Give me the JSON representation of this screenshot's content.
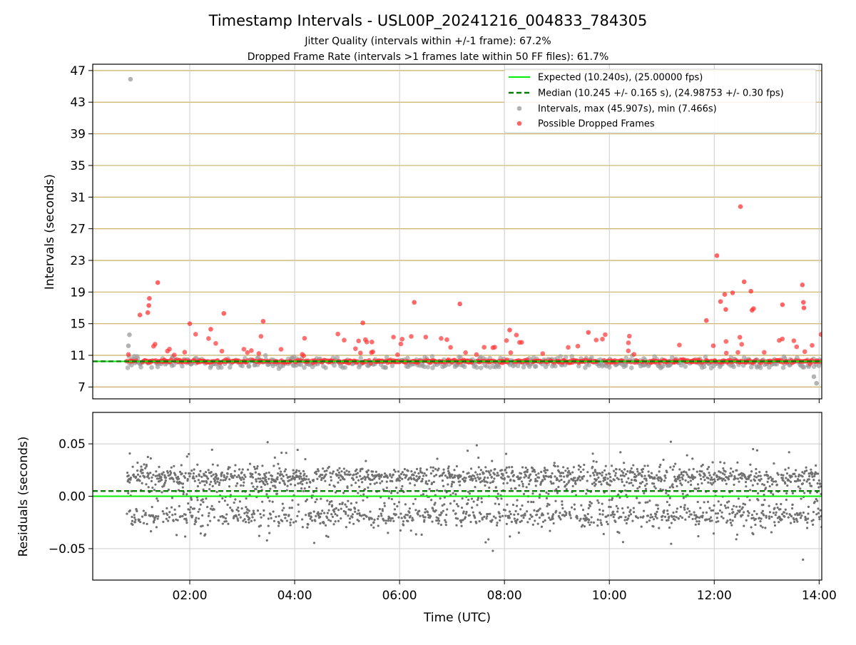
{
  "title": "Timestamp Intervals - USL00P_20241216_004833_784305",
  "subtitle_1": "Jitter Quality (intervals within +/-1 frame): 67.2%",
  "subtitle_2": "Dropped Frame Rate (intervals >1 frames late within 50 FF files): 61.7%",
  "colors": {
    "expected": "#00ee00",
    "median": "#008000",
    "intervals": "#999999",
    "dropped": "#ff3333",
    "residuals": "#707070",
    "hgrid_top": "#c8b060",
    "grid": "#cccccc"
  },
  "chart_data": [
    {
      "type": "scatter",
      "panel": "intervals",
      "ylabel": "Intervals (seconds)",
      "xlabel": "",
      "xlim": [
        0.15,
        14.05
      ],
      "ylim": [
        5.5,
        47.8
      ],
      "yticks": [
        7,
        11,
        15,
        19,
        23,
        27,
        31,
        35,
        39,
        43,
        47
      ],
      "xticks": [
        "02:00",
        "04:00",
        "06:00",
        "08:00",
        "10:00",
        "12:00",
        "14:00"
      ],
      "xtick_hours": [
        2,
        4,
        6,
        8,
        10,
        12,
        14
      ],
      "x_range_hours": [
        0.8,
        14.05
      ],
      "grid": true,
      "legend_position": "top-right",
      "legend": [
        "Expected (10.240s), (25.00000 fps)",
        "Median (10.245 +/- 0.165 s), (24.98753 +/- 0.30 fps)",
        "Intervals, max (45.907s), min (7.466s)",
        "Possible Dropped Frames"
      ],
      "expected_interval": 10.24,
      "median_interval": 10.245,
      "max_interval": 45.907,
      "min_interval": 7.466,
      "outliers": [
        {
          "x": 0.87,
          "y": 45.907,
          "dropped": false
        },
        {
          "x": 0.85,
          "y": 13.6,
          "dropped": false
        },
        {
          "x": 0.83,
          "y": 12.2,
          "dropped": false
        },
        {
          "x": 1.05,
          "y": 16.1,
          "dropped": true
        },
        {
          "x": 1.2,
          "y": 16.4,
          "dropped": true
        },
        {
          "x": 1.22,
          "y": 17.3,
          "dropped": true
        },
        {
          "x": 1.23,
          "y": 18.2,
          "dropped": true
        },
        {
          "x": 1.39,
          "y": 20.2,
          "dropped": true
        },
        {
          "x": 2.0,
          "y": 15.0,
          "dropped": true
        },
        {
          "x": 2.4,
          "y": 14.3,
          "dropped": true
        },
        {
          "x": 2.65,
          "y": 16.3,
          "dropped": true
        },
        {
          "x": 3.4,
          "y": 15.3,
          "dropped": true
        },
        {
          "x": 5.3,
          "y": 15.1,
          "dropped": true
        },
        {
          "x": 6.28,
          "y": 17.7,
          "dropped": true
        },
        {
          "x": 7.15,
          "y": 17.5,
          "dropped": true
        },
        {
          "x": 8.1,
          "y": 14.2,
          "dropped": true
        },
        {
          "x": 9.6,
          "y": 13.9,
          "dropped": true
        },
        {
          "x": 11.85,
          "y": 15.4,
          "dropped": true
        },
        {
          "x": 12.05,
          "y": 23.6,
          "dropped": true
        },
        {
          "x": 12.12,
          "y": 17.8,
          "dropped": true
        },
        {
          "x": 12.2,
          "y": 18.7,
          "dropped": true
        },
        {
          "x": 12.22,
          "y": 16.8,
          "dropped": true
        },
        {
          "x": 12.35,
          "y": 18.9,
          "dropped": true
        },
        {
          "x": 12.5,
          "y": 29.8,
          "dropped": true
        },
        {
          "x": 12.57,
          "y": 20.3,
          "dropped": true
        },
        {
          "x": 12.7,
          "y": 19.1,
          "dropped": true
        },
        {
          "x": 12.72,
          "y": 16.7,
          "dropped": true
        },
        {
          "x": 12.75,
          "y": 16.9,
          "dropped": true
        },
        {
          "x": 13.3,
          "y": 17.4,
          "dropped": true
        },
        {
          "x": 13.68,
          "y": 19.9,
          "dropped": true
        },
        {
          "x": 13.7,
          "y": 17.7,
          "dropped": true
        },
        {
          "x": 13.71,
          "y": 17.0,
          "dropped": true
        },
        {
          "x": 13.95,
          "y": 7.466,
          "dropped": false
        },
        {
          "x": 13.9,
          "y": 8.3,
          "dropped": false
        }
      ]
    },
    {
      "type": "scatter",
      "panel": "residuals",
      "ylabel": "Residuals (seconds)",
      "xlabel": "Time (UTC)",
      "xlim": [
        0.15,
        14.05
      ],
      "ylim": [
        -0.08,
        0.08
      ],
      "yticks": [
        0.05,
        0.0,
        -0.05
      ],
      "ytick_labels": [
        "0.05",
        "0.00",
        "−0.05"
      ],
      "xticks": [
        "02:00",
        "04:00",
        "06:00",
        "08:00",
        "10:00",
        "12:00",
        "14:00"
      ],
      "xtick_hours": [
        2,
        4,
        6,
        8,
        10,
        12,
        14
      ],
      "grid": true,
      "expected_residual": 0.0,
      "median_residual": 0.005
    }
  ]
}
